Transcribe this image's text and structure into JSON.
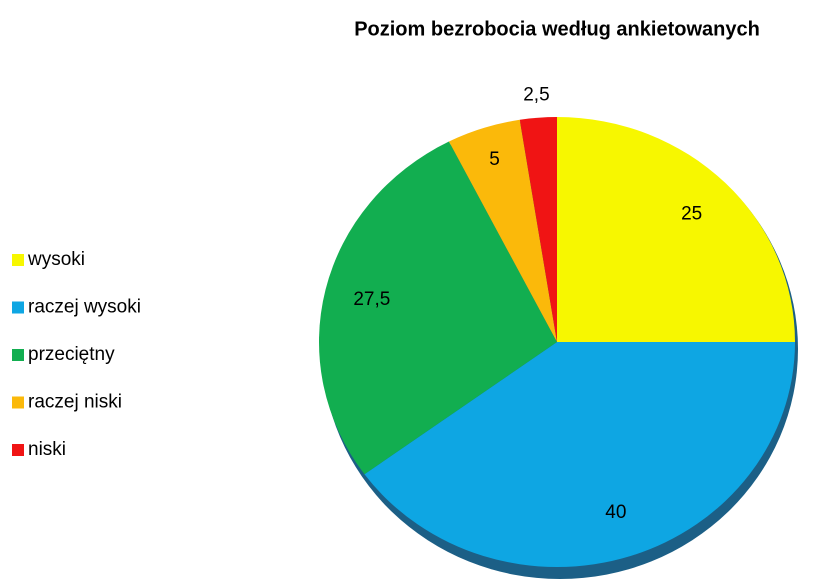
{
  "chart_data": {
    "type": "pie",
    "title": "Poziom bezrobocia według ankietowanych",
    "categories": [
      "wysoki",
      "raczej wysoki",
      "przeciętny",
      "raczej niski",
      "niski"
    ],
    "values": [
      25,
      40,
      27.5,
      5,
      2.5
    ],
    "value_labels": [
      "25",
      "40",
      "27,5",
      "5",
      "2,5"
    ],
    "colors": [
      "#f7f700",
      "#0ea6e3",
      "#12ae50",
      "#fbb90a",
      "#f01414"
    ],
    "legend": "left"
  }
}
